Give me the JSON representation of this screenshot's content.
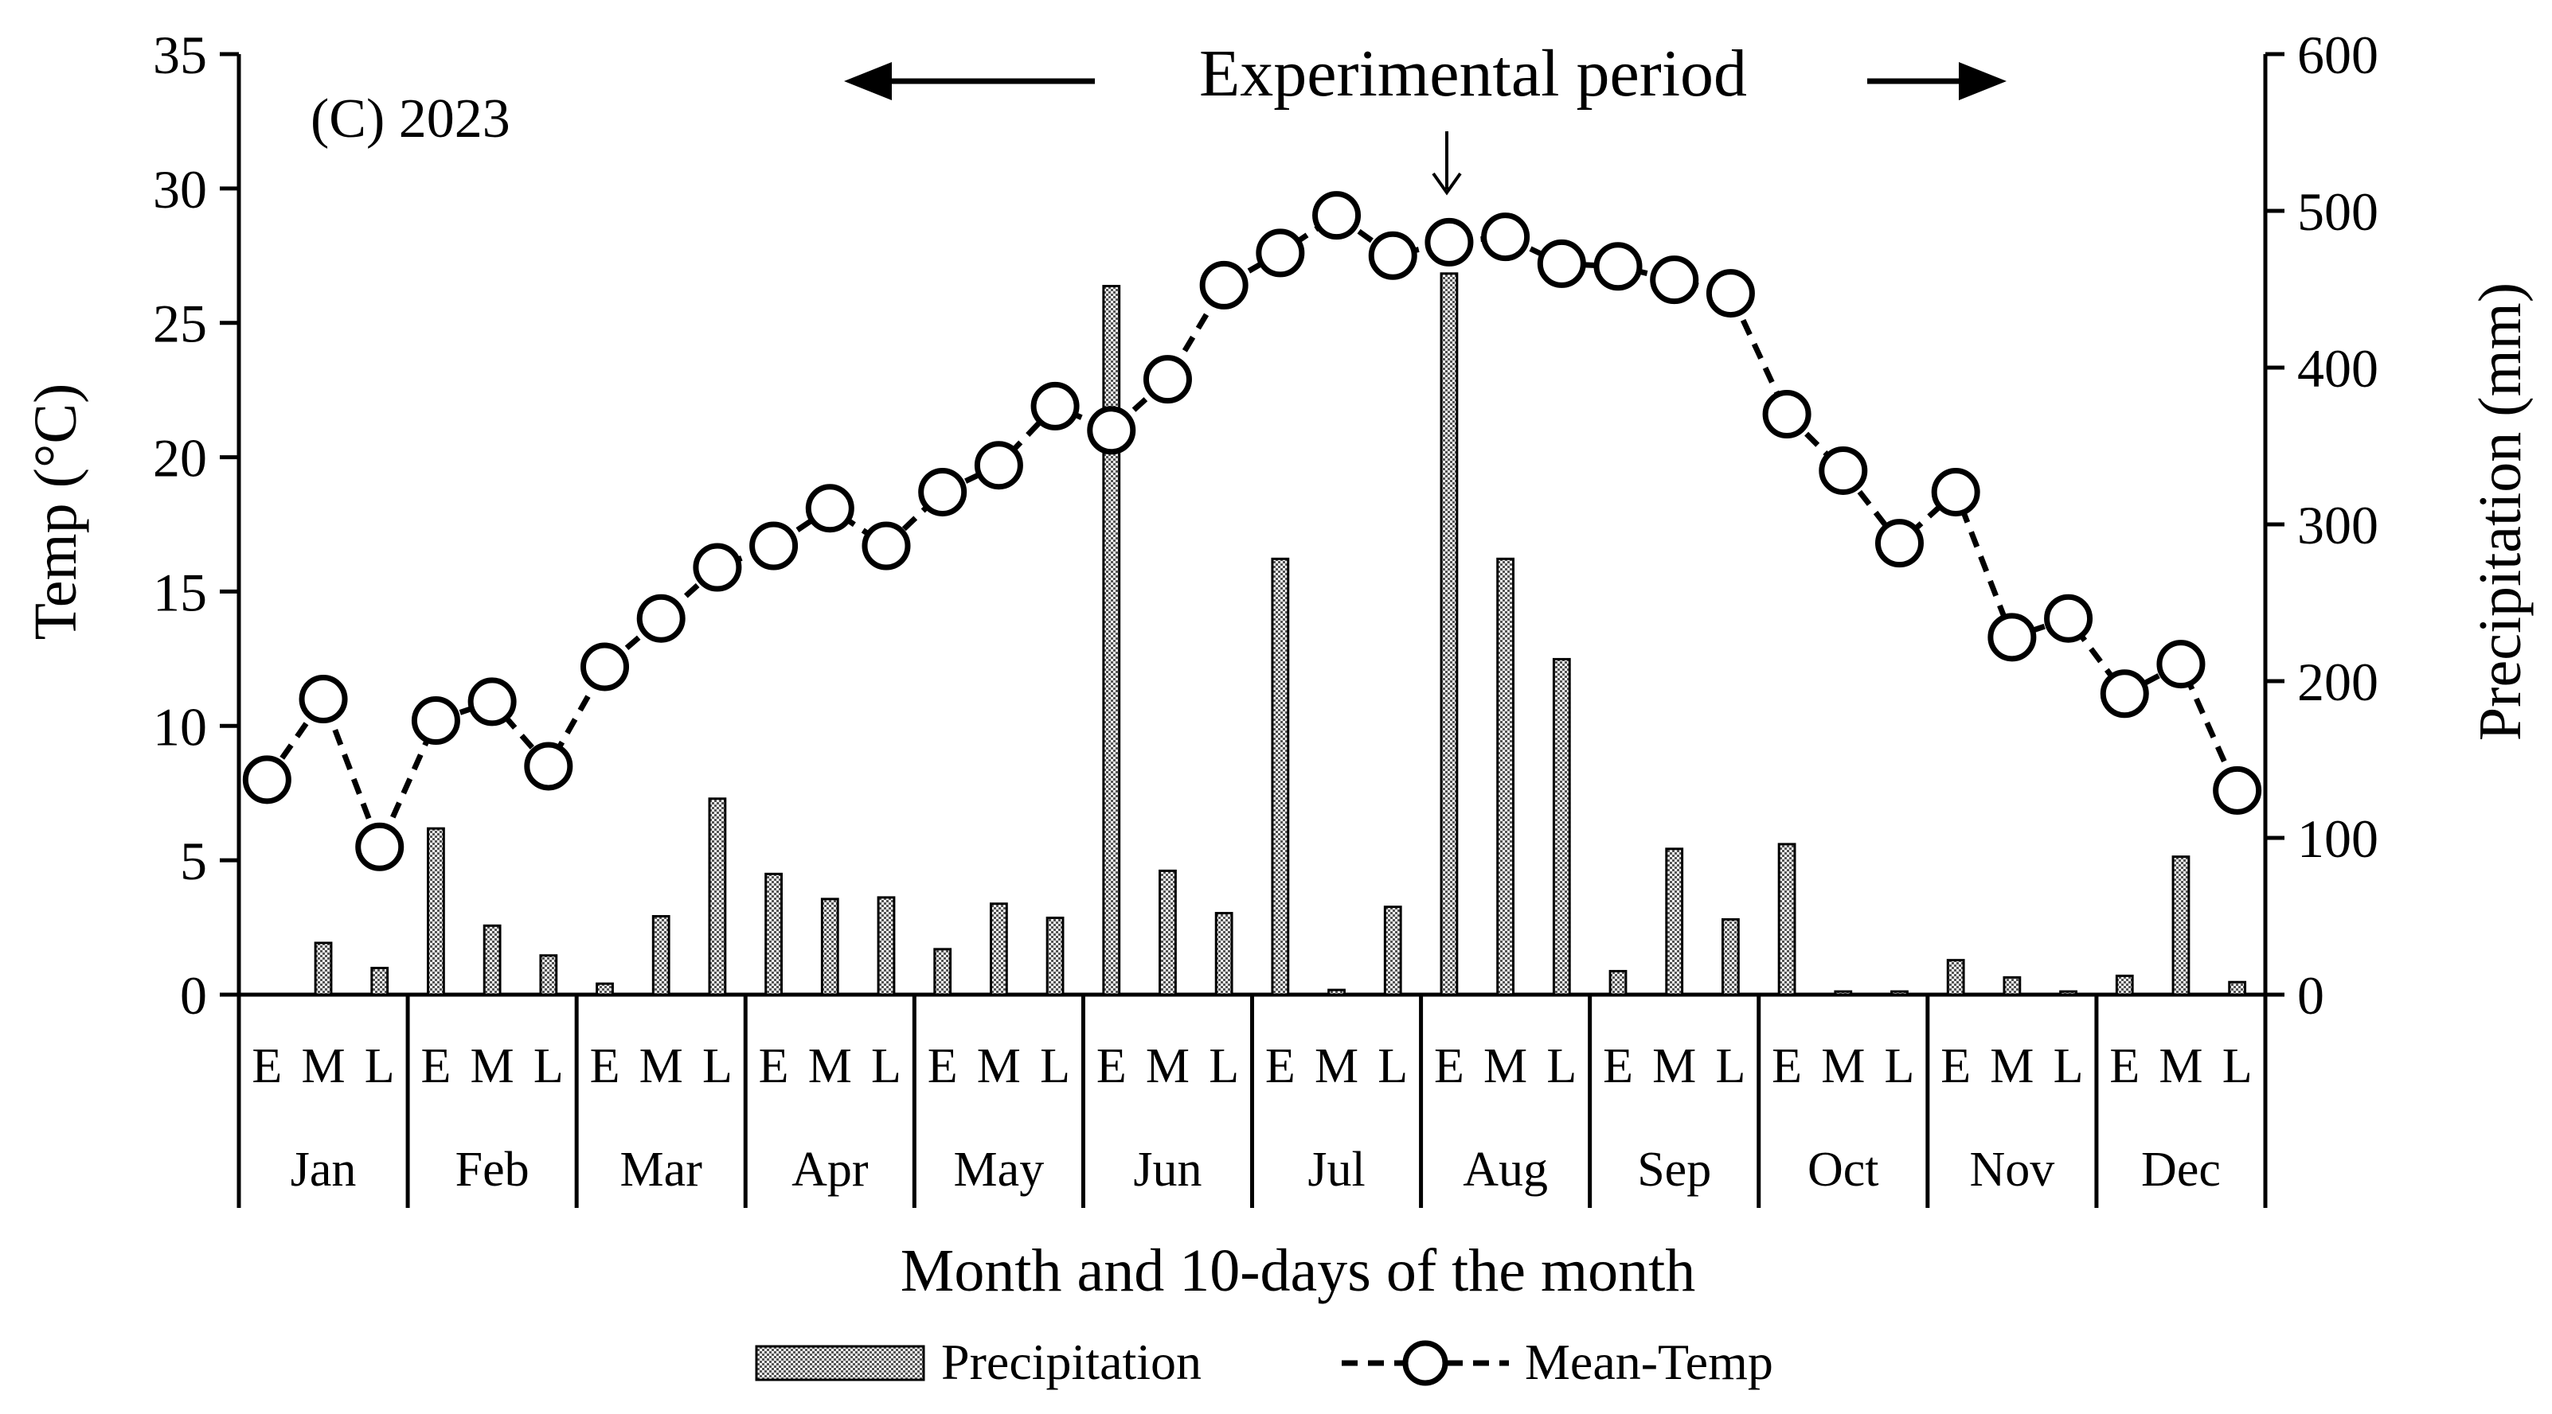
{
  "chart_data": {
    "type": "bar+line",
    "panel_label": "(C) 2023",
    "annotation": "Experimental period",
    "xlabel": "Month and 10-days of the month",
    "ylabel_left": "Temp (°C)",
    "ylabel_right": "Precipitation (mm)",
    "ylim_left": [
      0,
      35
    ],
    "ylim_right": [
      0,
      600
    ],
    "yticks_left": [
      "0",
      "5",
      "10",
      "15",
      "20",
      "25",
      "30",
      "35"
    ],
    "yticks_right": [
      "0",
      "100",
      "200",
      "300",
      "400",
      "500",
      "600"
    ],
    "months": [
      "Jan",
      "Feb",
      "Mar",
      "Apr",
      "May",
      "Jun",
      "Jul",
      "Aug",
      "Sep",
      "Oct",
      "Nov",
      "Dec"
    ],
    "subperiods": [
      "E",
      "M",
      "L"
    ],
    "series": [
      {
        "name": "Precipitation",
        "type": "bar",
        "axis": "right",
        "values": [
          0,
          33,
          17,
          106,
          44,
          25,
          7,
          50,
          125,
          77,
          61,
          62,
          29,
          58,
          49,
          452,
          79,
          52,
          278,
          3,
          56,
          460,
          278,
          214,
          15,
          93,
          48,
          96,
          2,
          2,
          22,
          11,
          2,
          12,
          88,
          8
        ]
      },
      {
        "name": "Mean-Temp",
        "type": "line",
        "axis": "left",
        "values": [
          8.0,
          11.0,
          5.5,
          10.2,
          10.9,
          8.5,
          12.2,
          14.0,
          15.9,
          16.7,
          18.1,
          16.7,
          18.7,
          19.7,
          21.9,
          21.0,
          22.9,
          26.4,
          27.6,
          29.0,
          27.5,
          28.0,
          28.2,
          27.2,
          27.1,
          26.6,
          26.1,
          21.6,
          19.5,
          16.8,
          18.7,
          13.3,
          14.0,
          11.2,
          12.3,
          7.6
        ]
      }
    ],
    "legend": {
      "precipitation": "Precipitation",
      "temperature": "Mean-Temp",
      "placement": "bottom"
    }
  }
}
